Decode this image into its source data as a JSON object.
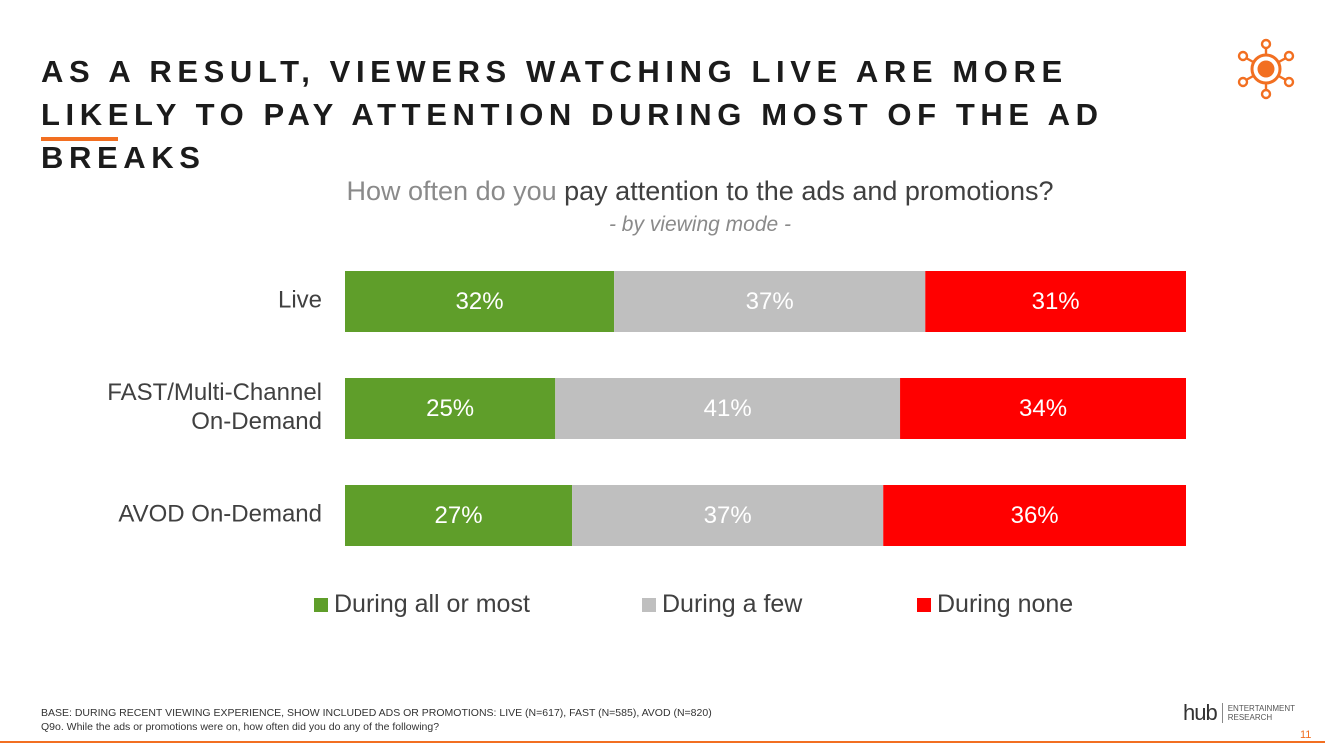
{
  "slide": {
    "headline": "As a result, viewers watching live are more likely to pay attention during most of the ad breaks",
    "question_prefix": "How often do you ",
    "question_emphasis": "pay attention to the ads and promotions?",
    "subtitle": "- by viewing mode -",
    "footnote_base": "BASE: DURING RECENT VIEWING EXPERIENCE, SHOW INCLUDED ADS OR PROMOTIONS: LIVE (n=617), FAST (n=585), AVOD (n=820)",
    "footnote_question": "Q9o. While the ads or promotions were on, how often did you do any of the following?",
    "logo_word": "hub",
    "logo_line1": "ENTERTAINMENT",
    "logo_line2": "RESEARCH",
    "page_number": "11",
    "accent_color": "#f26f21",
    "logo_icon": "sun-network-icon"
  },
  "chart_data": {
    "type": "bar",
    "orientation": "horizontal",
    "stacked": true,
    "categories": [
      "Live",
      "FAST/Multi-Channel On-Demand",
      "AVOD On-Demand"
    ],
    "category_lines": [
      [
        "Live"
      ],
      [
        "FAST/Multi-Channel",
        "On-Demand"
      ],
      [
        "AVOD On-Demand"
      ]
    ],
    "series": [
      {
        "name": "During all or most",
        "color": "#5f9e2a",
        "values": [
          32,
          25,
          27
        ]
      },
      {
        "name": "During a few",
        "color": "#bfbfbf",
        "values": [
          37,
          41,
          37
        ]
      },
      {
        "name": "During none",
        "color": "#ff0000",
        "values": [
          31,
          34,
          36
        ]
      }
    ],
    "value_suffix": "%",
    "xlim": [
      0,
      100
    ],
    "grid": false,
    "legend": "bottom"
  }
}
